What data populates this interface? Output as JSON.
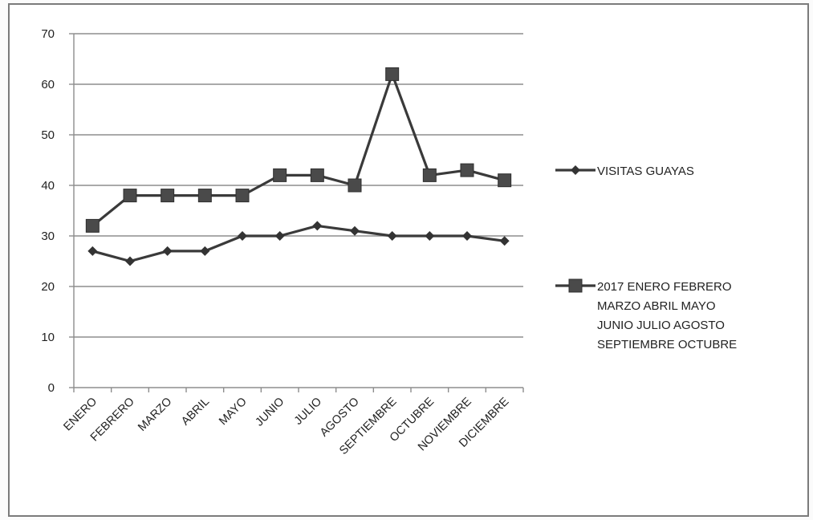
{
  "chart_data": {
    "type": "line",
    "title": "",
    "xlabel": "",
    "ylabel": "",
    "ylim": [
      0,
      70
    ],
    "yticks": [
      0,
      10,
      20,
      30,
      40,
      50,
      60,
      70
    ],
    "grid": true,
    "legend_position": "right",
    "categories": [
      "ENERO",
      "FEBRERO",
      "MARZO",
      "ABRIL",
      "MAYO",
      "JUNIO",
      "JULIO",
      "AGOSTO",
      "SEPTIEMBRE",
      "OCTUBRE",
      "NOVIEMBRE",
      "DICIEMBRE"
    ],
    "series": [
      {
        "name": "VISITAS GUAYAS",
        "marker": "diamond",
        "color": "#333333",
        "values": [
          27,
          25,
          27,
          27,
          30,
          30,
          32,
          31,
          30,
          30,
          30,
          29
        ]
      },
      {
        "name": "2017 ENERO FEBRERO MARZO ABRIL MAYO JUNIO JULIO AGOSTO SEPTIEMBRE OCTUBRE",
        "legend_lines": [
          "2017 ENERO FEBRERO",
          "MARZO ABRIL MAYO",
          "JUNIO JULIO AGOSTO",
          "SEPTIEMBRE OCTUBRE"
        ],
        "marker": "square",
        "color": "#444444",
        "values": [
          32,
          38,
          38,
          38,
          38,
          42,
          42,
          40,
          62,
          42,
          43,
          41
        ]
      }
    ]
  }
}
